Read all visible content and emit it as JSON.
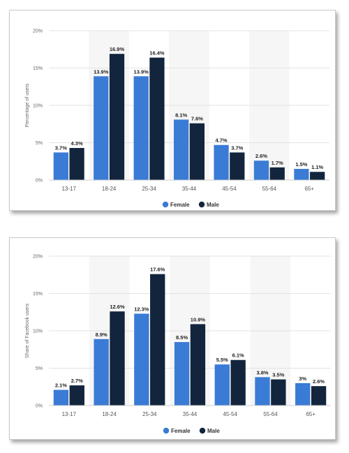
{
  "colors": {
    "female": "#3a7bd5",
    "male": "#13253d",
    "band": "#f6f6f6",
    "grid": "#e3e3e3"
  },
  "chart_data": [
    {
      "type": "bar",
      "ylabel": "Percentage of users",
      "ylim": [
        0,
        20
      ],
      "yticks": [
        "0%",
        "5%",
        "10%",
        "15%",
        "20%"
      ],
      "categories": [
        "13-17",
        "18-24",
        "25-34",
        "35-44",
        "45-54",
        "55-64",
        "65+"
      ],
      "series": [
        {
          "name": "Female",
          "values": [
            3.7,
            13.9,
            13.9,
            8.1,
            4.7,
            2.6,
            1.5
          ],
          "labels": [
            "3.7%",
            "13.9%",
            "13.9%",
            "8.1%",
            "4.7%",
            "2.6%",
            "1.5%"
          ]
        },
        {
          "name": "Male",
          "values": [
            4.3,
            16.9,
            16.4,
            7.6,
            3.7,
            1.7,
            1.1
          ],
          "labels": [
            "4.3%",
            "16.9%",
            "16.4%",
            "7.6%",
            "3.7%",
            "1.7%",
            "1.1%"
          ]
        }
      ],
      "legend": "bottom-center",
      "grid": true
    },
    {
      "type": "bar",
      "ylabel": "Share of Facebook users",
      "ylim": [
        0,
        20
      ],
      "yticks": [
        "0%",
        "5%",
        "10%",
        "15%",
        "20%"
      ],
      "categories": [
        "13-17",
        "18-24",
        "25-34",
        "35-44",
        "45-54",
        "55-64",
        "65+"
      ],
      "series": [
        {
          "name": "Female",
          "values": [
            2.1,
            8.9,
            12.3,
            8.5,
            5.5,
            3.8,
            3.0
          ],
          "labels": [
            "2.1%",
            "8.9%",
            "12.3%",
            "8.5%",
            "5.5%",
            "3.8%",
            "3%"
          ]
        },
        {
          "name": "Male",
          "values": [
            2.7,
            12.6,
            17.6,
            10.9,
            6.1,
            3.5,
            2.6
          ],
          "labels": [
            "2.7%",
            "12.6%",
            "17.6%",
            "10.9%",
            "6.1%",
            "3.5%",
            "2.6%"
          ]
        }
      ],
      "legend": "bottom-center",
      "grid": true
    }
  ]
}
